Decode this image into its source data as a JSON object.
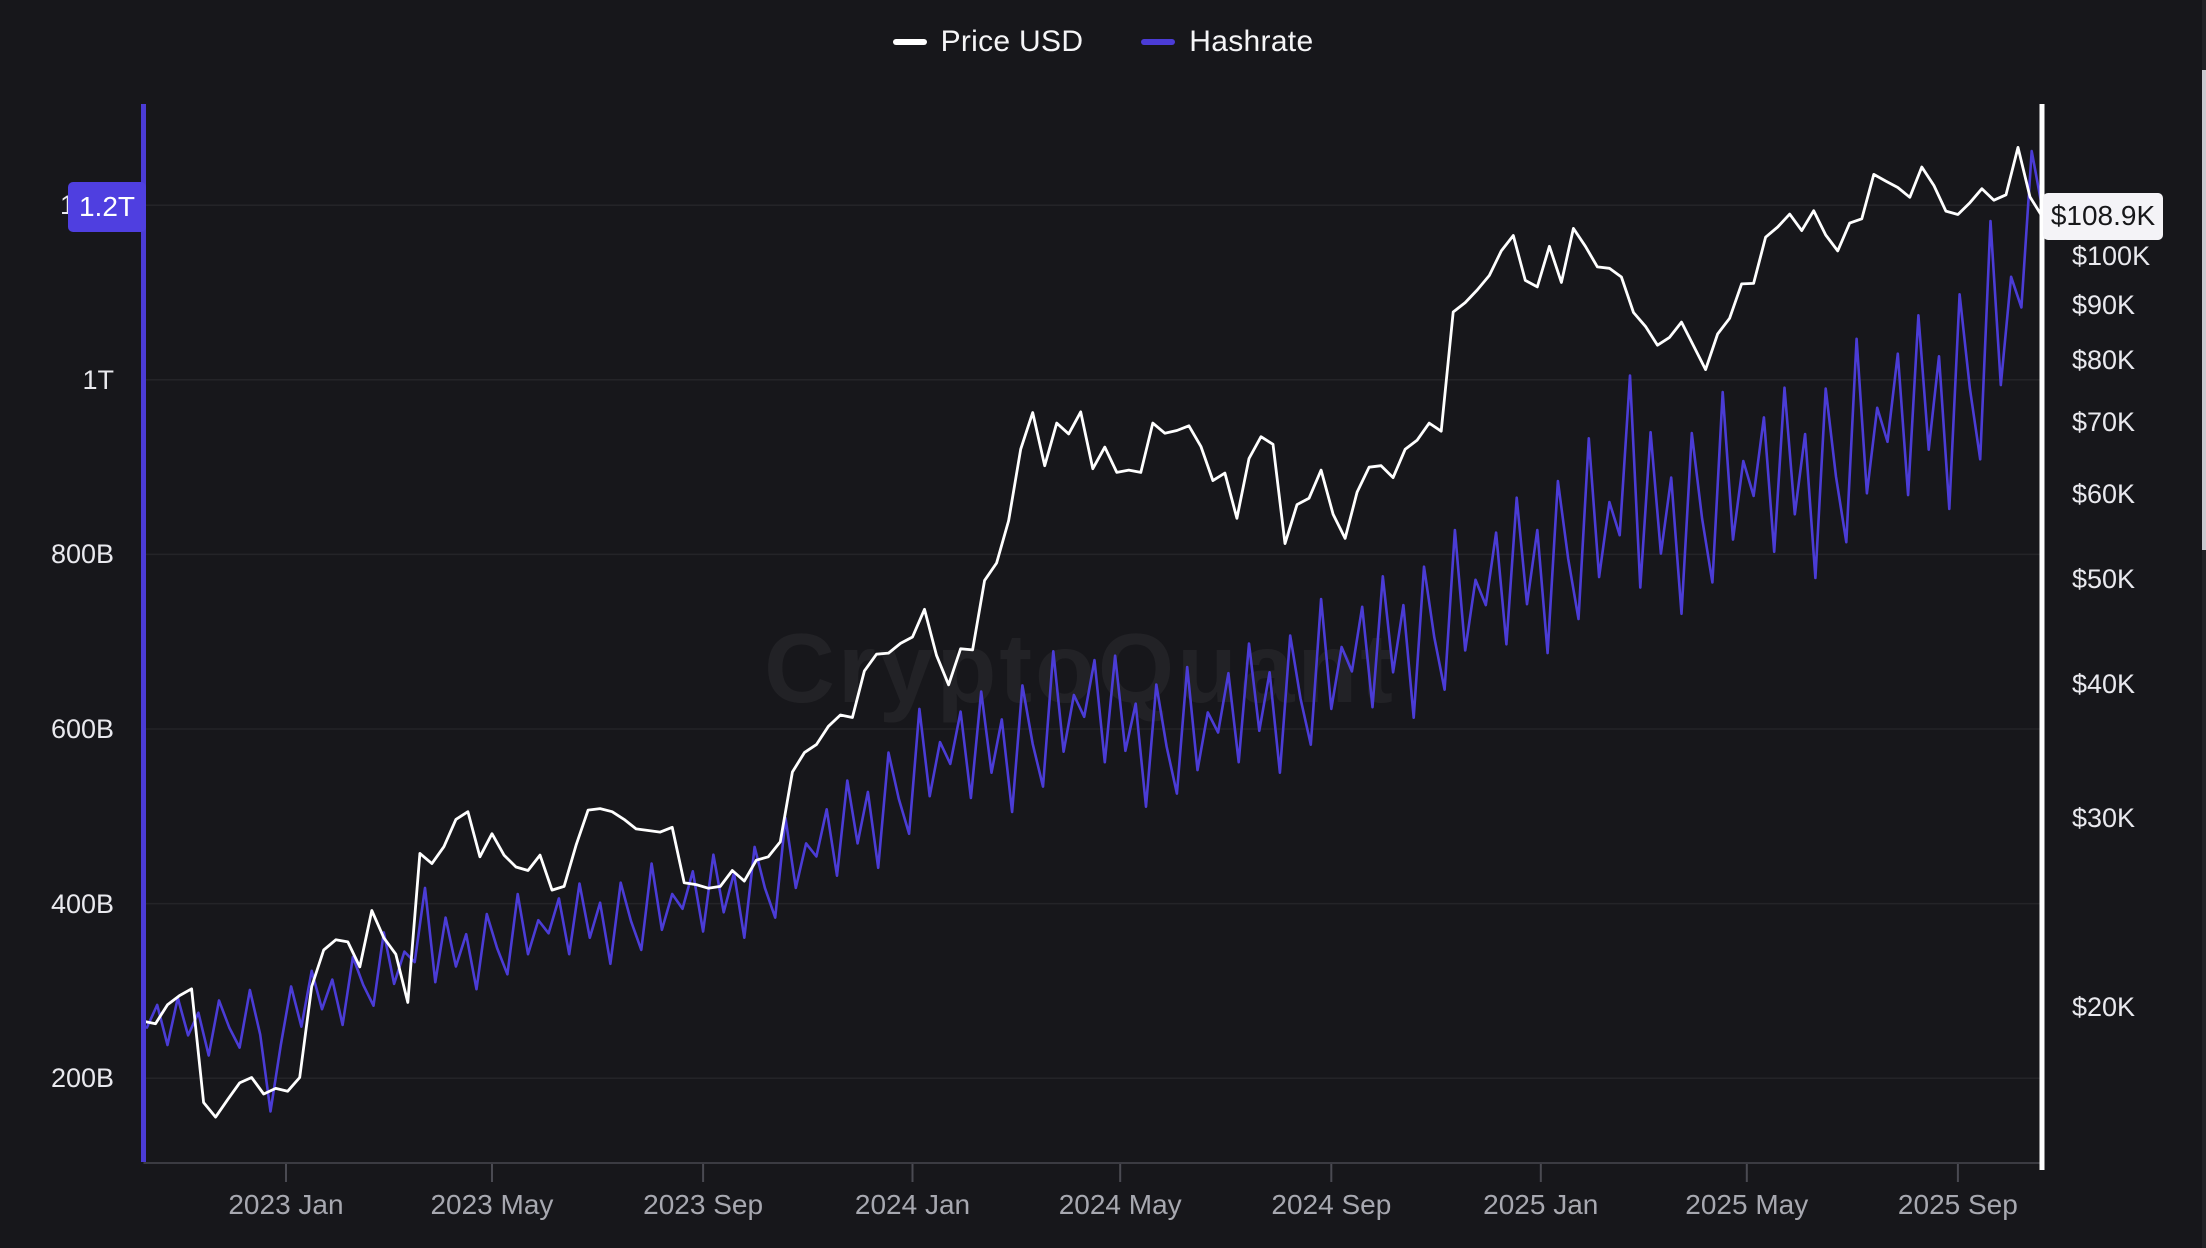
{
  "watermark": "CryptoQuant",
  "legend": {
    "items": [
      {
        "label": "Price USD",
        "color": "#ffffff"
      },
      {
        "label": "Hashrate",
        "color": "#4b3cd6"
      }
    ]
  },
  "badges": {
    "hashrate": {
      "label": "1.2T",
      "value": 1198,
      "bg": "#4f3fe0",
      "text_color": "#ffffff"
    },
    "price": {
      "label": "$108.9K",
      "value_k": 108.9,
      "bg": "#f4f3f7",
      "text_color": "#17171a"
    }
  },
  "chart_data": {
    "type": "line",
    "title": "",
    "grid": "horizontal",
    "legend_position": "top-center",
    "x_axis": {
      "start_date": "2022-10-10",
      "end_date": "2025-10-21",
      "total_days": 1106,
      "ticks": [
        {
          "label": "2023 Jan",
          "day": 83
        },
        {
          "label": "2023 May",
          "day": 203
        },
        {
          "label": "2023 Sep",
          "day": 326
        },
        {
          "label": "2024 Jan",
          "day": 448
        },
        {
          "label": "2024 May",
          "day": 569
        },
        {
          "label": "2024 Sep",
          "day": 692
        },
        {
          "label": "2025 Jan",
          "day": 814
        },
        {
          "label": "2025 May",
          "day": 934
        },
        {
          "label": "2025 Sep",
          "day": 1057
        }
      ]
    },
    "left_axis": {
      "name": "Hashrate",
      "scale": "linear",
      "range": [
        104,
        1316
      ],
      "ticks": [
        {
          "label": "200B",
          "value": 200
        },
        {
          "label": "400B",
          "value": 400
        },
        {
          "label": "600B",
          "value": 600
        },
        {
          "label": "800B",
          "value": 800
        },
        {
          "label": "1T",
          "value": 1000
        },
        {
          "label": "1.2T",
          "value": 1200
        }
      ]
    },
    "right_axis": {
      "name": "Price USD",
      "scale": "log",
      "range_k": [
        14.35,
        138.5
      ],
      "ticks": [
        {
          "label": "$20K",
          "value": 20
        },
        {
          "label": "$30K",
          "value": 30
        },
        {
          "label": "$40K",
          "value": 40
        },
        {
          "label": "$50K",
          "value": 50
        },
        {
          "label": "$60K",
          "value": 60
        },
        {
          "label": "$70K",
          "value": 70
        },
        {
          "label": "$80K",
          "value": 80
        },
        {
          "label": "$90K",
          "value": 90
        },
        {
          "label": "$100K",
          "value": 100
        }
      ]
    },
    "series": [
      {
        "name": "Price USD",
        "axis": "right",
        "color": "#ffffff",
        "unit": "USD (thousands)",
        "x0_day": 0,
        "step_days": 7,
        "values": [
          19.4,
          19.3,
          20.1,
          20.5,
          20.8,
          16.3,
          15.8,
          16.4,
          17.0,
          17.2,
          16.6,
          16.8,
          16.7,
          17.2,
          20.9,
          22.6,
          23.1,
          23.0,
          21.8,
          24.6,
          23.2,
          22.4,
          20.2,
          27.8,
          27.2,
          28.2,
          29.9,
          30.4,
          27.6,
          29.0,
          27.7,
          27.0,
          26.8,
          27.7,
          25.7,
          25.9,
          28.3,
          30.5,
          30.6,
          30.4,
          29.9,
          29.3,
          29.2,
          29.1,
          29.4,
          26.1,
          26.0,
          25.8,
          25.9,
          26.8,
          26.2,
          27.4,
          27.6,
          28.5,
          33.1,
          34.5,
          35.1,
          36.5,
          37.4,
          37.2,
          41.1,
          42.6,
          42.7,
          43.6,
          44.2,
          46.9,
          42.5,
          39.9,
          43.1,
          43.0,
          49.9,
          51.8,
          56.7,
          66.1,
          71.5,
          63.8,
          69.9,
          68.3,
          71.6,
          63.4,
          66.4,
          62.9,
          63.2,
          62.9,
          69.9,
          68.4,
          68.8,
          69.5,
          66.5,
          61.8,
          62.8,
          57.0,
          64.8,
          67.9,
          66.8,
          54.0,
          58.7,
          59.5,
          63.2,
          57.5,
          54.6,
          60.3,
          63.6,
          63.8,
          62.2,
          66.1,
          67.4,
          69.9,
          68.7,
          88.7,
          90.5,
          93.0,
          95.9,
          101.1,
          104.5,
          94.9,
          93.6,
          102.1,
          94.5,
          106.1,
          102.1,
          97.7,
          97.4,
          95.6,
          88.6,
          86.0,
          82.6,
          84.0,
          86.8,
          82.5,
          78.4,
          84.6,
          87.5,
          94.2,
          94.3,
          104.1,
          106.4,
          109.4,
          105.6,
          110.2,
          104.6,
          101.1,
          107.3,
          108.3,
          119.1,
          117.4,
          115.8,
          113.4,
          121.0,
          116.3,
          110.1,
          109.3,
          112.1,
          115.5,
          112.7,
          114.0,
          126.2,
          113.5,
          108.9
        ]
      },
      {
        "name": "Hashrate",
        "axis": "left",
        "color": "#4b3cd6",
        "unit": "B (hash/s)",
        "x0_day": 2,
        "step_days": 6,
        "values": [
          258,
          284,
          238,
          292,
          249,
          275,
          226,
          289,
          258,
          235,
          301,
          250,
          162,
          238,
          305,
          259,
          323,
          279,
          313,
          261,
          339,
          307,
          283,
          367,
          308,
          345,
          333,
          418,
          310,
          384,
          328,
          365,
          302,
          388,
          349,
          319,
          411,
          342,
          381,
          366,
          406,
          342,
          423,
          361,
          401,
          331,
          424,
          380,
          347,
          446,
          370,
          411,
          394,
          437,
          368,
          456,
          390,
          435,
          361,
          465,
          418,
          384,
          498,
          418,
          469,
          454,
          508,
          432,
          541,
          469,
          528,
          441,
          573,
          520,
          480,
          623,
          523,
          585,
          560,
          620,
          521,
          643,
          550,
          611,
          505,
          650,
          583,
          534,
          689,
          574,
          639,
          614,
          679,
          562,
          684,
          575,
          629,
          511,
          651,
          580,
          526,
          671,
          553,
          619,
          596,
          664,
          562,
          698,
          598,
          665,
          550,
          707,
          635,
          582,
          749,
          623,
          694,
          666,
          740,
          625,
          775,
          665,
          742,
          613,
          786,
          705,
          645,
          828,
          690,
          771,
          742,
          825,
          697,
          865,
          743,
          828,
          687,
          884,
          795,
          726,
          933,
          774,
          860,
          822,
          1005,
          762,
          940,
          801,
          888,
          732,
          939,
          841,
          768,
          986,
          817,
          907,
          867,
          957,
          803,
          991,
          846,
          938,
          773,
          990,
          889,
          814,
          1047,
          870,
          968,
          929,
          1030,
          868,
          1074,
          920,
          1027,
          852,
          1098,
          990,
          909,
          1182,
          994,
          1118,
          1083,
          1262,
          1198
        ]
      }
    ]
  }
}
